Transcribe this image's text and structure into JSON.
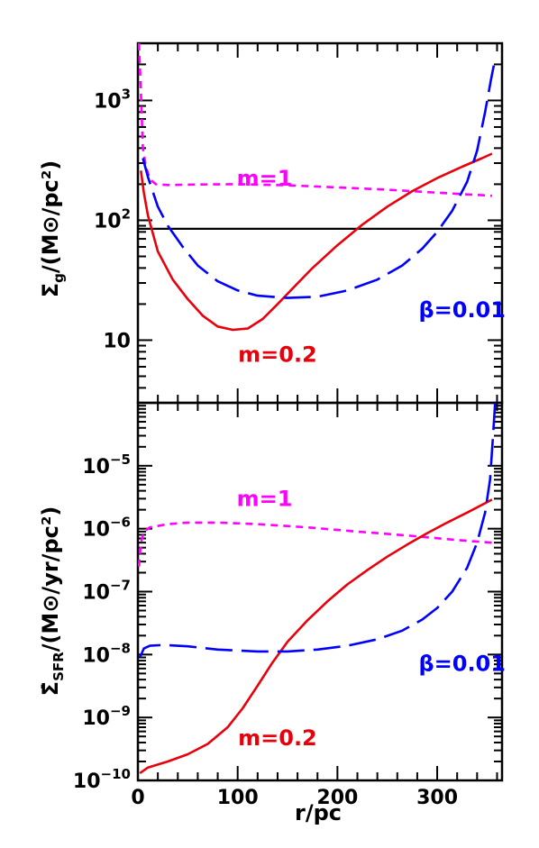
{
  "chart_data": [
    {
      "type": "line",
      "panel": "top",
      "ylabel": "Σg/(M⊙/pc²)",
      "xlabel": "",
      "yscale": "log",
      "ylim": [
        3,
        3000
      ],
      "xlim": [
        0,
        365
      ],
      "y_ticks": [
        {
          "value": 10,
          "label": "10"
        },
        {
          "value": 100,
          "label": "10",
          "exp": "2"
        },
        {
          "value": 1000,
          "label": "10",
          "exp": "3"
        }
      ],
      "hline": {
        "y": 85,
        "color": "#000000"
      },
      "series": [
        {
          "name": "m=1",
          "color": "#ff00ff",
          "dash": "short",
          "points": [
            [
              1,
              3000
            ],
            [
              3,
              1200
            ],
            [
              5,
              400
            ],
            [
              8,
              280
            ],
            [
              12,
              220
            ],
            [
              18,
              200
            ],
            [
              30,
              197
            ],
            [
              60,
              199
            ],
            [
              100,
              200
            ],
            [
              150,
              196
            ],
            [
              200,
              188
            ],
            [
              250,
              180
            ],
            [
              300,
              170
            ],
            [
              345,
              162
            ],
            [
              355,
              160
            ]
          ]
        },
        {
          "name": "m=0.2",
          "color": "#e8000b",
          "dash": "solid",
          "points": [
            [
              3,
              260
            ],
            [
              6,
              170
            ],
            [
              10,
              110
            ],
            [
              20,
              55
            ],
            [
              35,
              32
            ],
            [
              50,
              22
            ],
            [
              65,
              16
            ],
            [
              80,
              13
            ],
            [
              95,
              12.2
            ],
            [
              110,
              12.5
            ],
            [
              125,
              15
            ],
            [
              140,
              20
            ],
            [
              155,
              27
            ],
            [
              175,
              40
            ],
            [
              200,
              62
            ],
            [
              225,
              92
            ],
            [
              250,
              130
            ],
            [
              275,
              175
            ],
            [
              300,
              225
            ],
            [
              325,
              280
            ],
            [
              345,
              330
            ],
            [
              355,
              360
            ]
          ]
        },
        {
          "name": "β=0.01",
          "color": "#0000ff",
          "dash": "long",
          "points": [
            [
              5,
              330
            ],
            [
              10,
              230
            ],
            [
              20,
              130
            ],
            [
              30,
              90
            ],
            [
              45,
              60
            ],
            [
              60,
              42
            ],
            [
              80,
              31
            ],
            [
              100,
              26
            ],
            [
              120,
              23.5
            ],
            [
              150,
              22.5
            ],
            [
              180,
              23
            ],
            [
              210,
              26
            ],
            [
              240,
              32
            ],
            [
              265,
              42
            ],
            [
              285,
              58
            ],
            [
              300,
              80
            ],
            [
              315,
              120
            ],
            [
              330,
              210
            ],
            [
              340,
              380
            ],
            [
              348,
              800
            ],
            [
              354,
              1500
            ],
            [
              357,
              2000
            ]
          ]
        }
      ],
      "labels": [
        {
          "text": "m=1",
          "x": 127,
          "y": 195,
          "color": "#ff00ff"
        },
        {
          "text": "m=0.2",
          "x": 140,
          "y": 6.6,
          "color": "#e8000b"
        },
        {
          "text": "β=0.01",
          "x": 325,
          "y": 15.5,
          "color": "#0000ff"
        }
      ]
    },
    {
      "type": "line",
      "panel": "bottom",
      "ylabel": "Σ̇SFR/(M⊙/yr/pc²)",
      "xlabel": "r/pc",
      "yscale": "log",
      "ylim": [
        1e-10,
        0.0001
      ],
      "xlim": [
        0,
        365
      ],
      "x_ticks": [
        0,
        100,
        200,
        300
      ],
      "y_ticks": [
        {
          "value": 1e-10,
          "label": "10",
          "exp": "−10"
        },
        {
          "value": 1e-09,
          "label": "10",
          "exp": "−9"
        },
        {
          "value": 1e-08,
          "label": "10",
          "exp": "−8"
        },
        {
          "value": 1e-07,
          "label": "10",
          "exp": "−7"
        },
        {
          "value": 1e-06,
          "label": "10",
          "exp": "−6"
        },
        {
          "value": 1e-05,
          "label": "10",
          "exp": "−5"
        }
      ],
      "series": [
        {
          "name": "m=1",
          "color": "#ff00ff",
          "dash": "short",
          "points": [
            [
              1,
              2.5e-07
            ],
            [
              3,
              6e-07
            ],
            [
              6,
              9e-07
            ],
            [
              12,
              1.05e-06
            ],
            [
              30,
              1.18e-06
            ],
            [
              50,
              1.25e-06
            ],
            [
              80,
              1.25e-06
            ],
            [
              120,
              1.18e-06
            ],
            [
              170,
              1.05e-06
            ],
            [
              220,
              9e-07
            ],
            [
              270,
              7.8e-07
            ],
            [
              320,
              6.6e-07
            ],
            [
              355,
              6e-07
            ]
          ]
        },
        {
          "name": "m=0.2",
          "color": "#e8000b",
          "dash": "solid",
          "points": [
            [
              2,
              1.3e-10
            ],
            [
              10,
              1.6e-10
            ],
            [
              30,
              2e-10
            ],
            [
              50,
              2.6e-10
            ],
            [
              70,
              3.8e-10
            ],
            [
              90,
              7e-10
            ],
            [
              105,
              1.4e-09
            ],
            [
              120,
              3.2e-09
            ],
            [
              135,
              7.5e-09
            ],
            [
              150,
              1.6e-08
            ],
            [
              170,
              3.5e-08
            ],
            [
              190,
              7e-08
            ],
            [
              210,
              1.3e-07
            ],
            [
              230,
              2.2e-07
            ],
            [
              250,
              3.6e-07
            ],
            [
              270,
              5.6e-07
            ],
            [
              290,
              8.5e-07
            ],
            [
              310,
              1.25e-06
            ],
            [
              330,
              1.8e-06
            ],
            [
              345,
              2.4e-06
            ],
            [
              355,
              2.9e-06
            ]
          ]
        },
        {
          "name": "β=0.01",
          "color": "#0000ff",
          "dash": "long",
          "points": [
            [
              2,
              9e-09
            ],
            [
              6,
              1.25e-08
            ],
            [
              12,
              1.38e-08
            ],
            [
              25,
              1.42e-08
            ],
            [
              50,
              1.35e-08
            ],
            [
              80,
              1.2e-08
            ],
            [
              120,
              1.12e-08
            ],
            [
              150,
              1.12e-08
            ],
            [
              180,
              1.2e-08
            ],
            [
              210,
              1.38e-08
            ],
            [
              240,
              1.75e-08
            ],
            [
              265,
              2.4e-08
            ],
            [
              285,
              3.6e-08
            ],
            [
              300,
              5.5e-08
            ],
            [
              315,
              1e-07
            ],
            [
              330,
              2.4e-07
            ],
            [
              340,
              6e-07
            ],
            [
              348,
              1.8e-06
            ],
            [
              353,
              6e-06
            ],
            [
              356,
              3e-05
            ],
            [
              358,
              0.0001
            ]
          ]
        }
      ],
      "labels": [
        {
          "text": "m=1",
          "x": 127,
          "y": 2.3e-06,
          "color": "#ff00ff"
        },
        {
          "text": "m=0.2",
          "x": 140,
          "y": 3.6e-10,
          "color": "#e8000b"
        },
        {
          "text": "β=0.01",
          "x": 325,
          "y": 5.5e-09,
          "color": "#0000ff"
        }
      ]
    }
  ]
}
